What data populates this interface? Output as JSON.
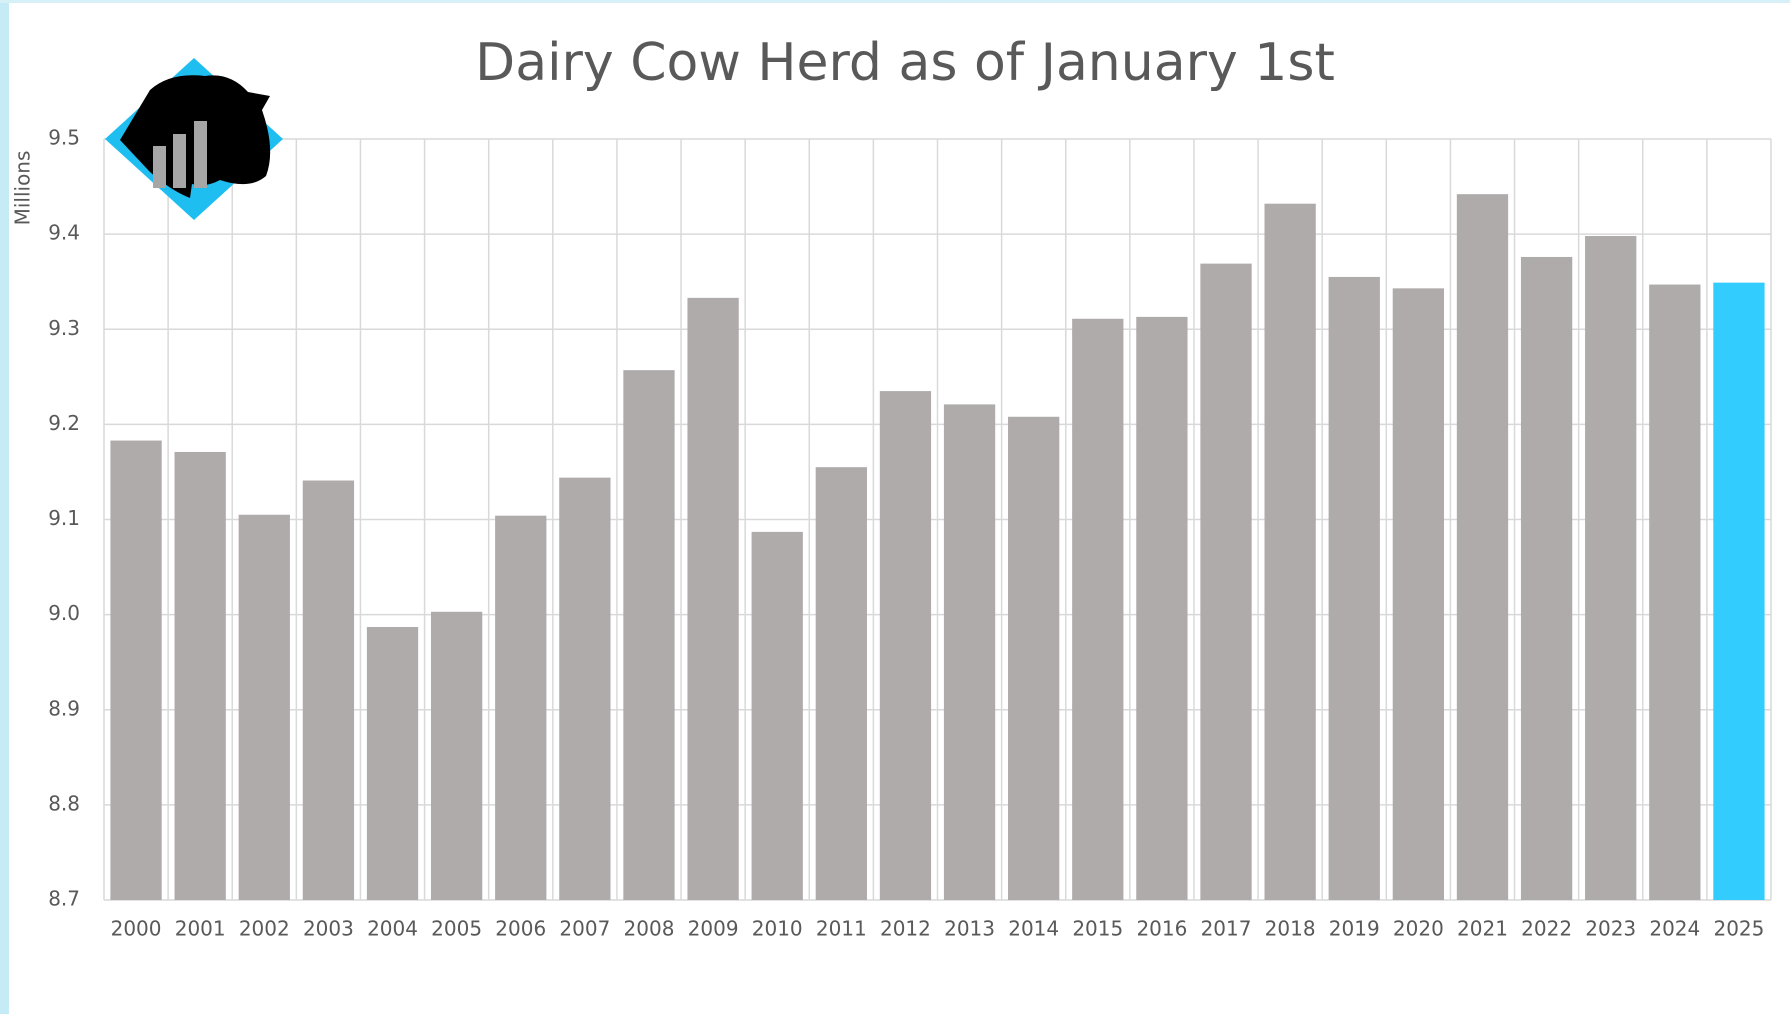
{
  "chart_data": {
    "type": "bar",
    "title": "Dairy Cow Herd as of January 1st",
    "y_label": "Millions",
    "categories": [
      "2000",
      "2001",
      "2002",
      "2003",
      "2004",
      "2005",
      "2006",
      "2007",
      "2008",
      "2009",
      "2010",
      "2011",
      "2012",
      "2013",
      "2014",
      "2015",
      "2016",
      "2017",
      "2018",
      "2019",
      "2020",
      "2021",
      "2022",
      "2023",
      "2024",
      "2025"
    ],
    "values": [
      9.183,
      9.171,
      9.105,
      9.141,
      8.987,
      9.003,
      9.104,
      9.144,
      9.257,
      9.333,
      9.087,
      9.155,
      9.235,
      9.221,
      9.208,
      9.311,
      9.313,
      9.369,
      9.432,
      9.355,
      9.343,
      9.442,
      9.376,
      9.398,
      9.347,
      9.349
    ],
    "colors": [
      "#afabab",
      "#afabab",
      "#afabab",
      "#afabab",
      "#afabab",
      "#afabab",
      "#afabab",
      "#afabab",
      "#afabab",
      "#afabab",
      "#afabab",
      "#afabab",
      "#afabab",
      "#afabab",
      "#afabab",
      "#afabab",
      "#afabab",
      "#afabab",
      "#afabab",
      "#afabab",
      "#afabab",
      "#afabab",
      "#afabab",
      "#afabab",
      "#afabab",
      "#33ccff"
    ],
    "ylim": [
      8.7,
      9.5
    ],
    "yticks": [
      8.7,
      8.8,
      8.9,
      {
        "value": 9,
        "label": "9.0"
      },
      9.1,
      9.2,
      9.3,
      9.4,
      9.5
    ],
    "grid": true
  }
}
